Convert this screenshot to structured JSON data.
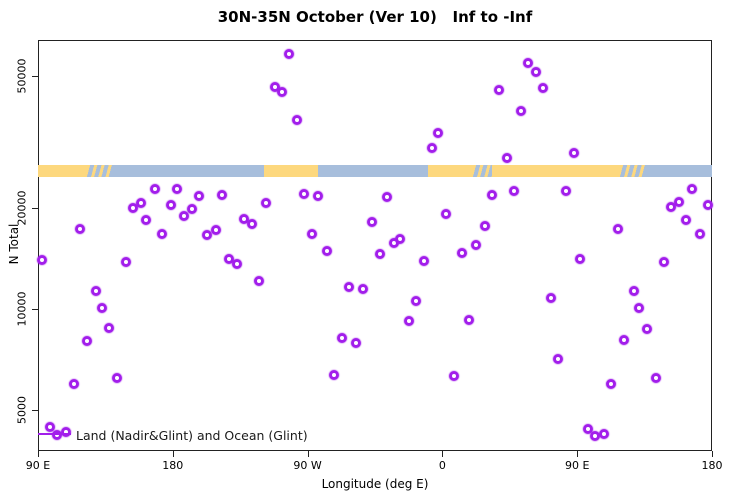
{
  "title": "30N-35N October (Ver 10)   Inf to -Inf",
  "legend": {
    "label": "Land (Nadir&Glint) and Ocean (Glint)"
  },
  "axes": {
    "x_label": "Longitude (deg E)",
    "y_label": "N Total"
  },
  "chart_data": {
    "type": "scatter",
    "title": "30N-35N October (Ver 10)   Inf to -Inf",
    "xlabel": "Longitude (deg E)",
    "ylabel": "N Total",
    "y_scale": "log",
    "x_range_display_deg": [
      90,
      540
    ],
    "y_range": [
      4000,
      62000
    ],
    "grid": false,
    "legend_position": "bottom-left-inside",
    "marker": "open-circle",
    "colors": {
      "point": "#A21EEB",
      "land": "#FDD87E",
      "ocean": "#A7BEDC",
      "axis": "#222222"
    },
    "x_ticks": [
      {
        "deg": 90,
        "label": "90 E"
      },
      {
        "deg": 180,
        "label": "180"
      },
      {
        "deg": 270,
        "label": "90 W"
      },
      {
        "deg": 360,
        "label": "0"
      },
      {
        "deg": 450,
        "label": "90 E"
      },
      {
        "deg": 540,
        "label": "180"
      }
    ],
    "y_ticks": [
      {
        "value": 5000,
        "label": "5000"
      },
      {
        "value": 10000,
        "label": "10000"
      },
      {
        "value": 20000,
        "label": "20000"
      },
      {
        "value": 50000,
        "label": "50000"
      }
    ],
    "surface_band": {
      "n_top": 27000,
      "n_bottom": 24800,
      "segments": [
        {
          "from_deg": 90.0,
          "to_deg": 122.8,
          "type": "land"
        },
        {
          "from_deg": 122.8,
          "to_deg": 139.5,
          "type": "mixed"
        },
        {
          "from_deg": 139.5,
          "to_deg": 241.1,
          "type": "ocean"
        },
        {
          "from_deg": 241.1,
          "to_deg": 277.2,
          "type": "land"
        },
        {
          "from_deg": 277.2,
          "to_deg": 350.1,
          "type": "ocean"
        },
        {
          "from_deg": 350.1,
          "to_deg": 380.2,
          "type": "land"
        },
        {
          "from_deg": 380.2,
          "to_deg": 392.9,
          "type": "mixed"
        },
        {
          "from_deg": 392.9,
          "to_deg": 478.5,
          "type": "land"
        },
        {
          "from_deg": 478.5,
          "to_deg": 495.2,
          "type": "mixed"
        },
        {
          "from_deg": 495.2,
          "to_deg": 540.0,
          "type": "ocean"
        }
      ]
    },
    "points": [
      [
        257.6,
        57870
      ],
      [
        248.0,
        46310
      ],
      [
        252.7,
        44640
      ],
      [
        262.7,
        36730
      ],
      [
        357.2,
        33640
      ],
      [
        353.0,
        30410
      ],
      [
        417.4,
        54620
      ],
      [
        422.3,
        51140
      ],
      [
        427.0,
        45890
      ],
      [
        397.6,
        45260
      ],
      [
        412.5,
        39070
      ],
      [
        447.7,
        29320
      ],
      [
        403.1,
        28380
      ],
      [
        167.8,
        22830
      ],
      [
        182.7,
        22830
      ],
      [
        197.6,
        21750
      ],
      [
        212.8,
        21900
      ],
      [
        158.9,
        20810
      ],
      [
        153.1,
        20110
      ],
      [
        178.9,
        20440
      ],
      [
        192.5,
        19970
      ],
      [
        187.6,
        19030
      ],
      [
        162.4,
        18470
      ],
      [
        227.7,
        18560
      ],
      [
        232.6,
        17970
      ],
      [
        118.1,
        17320
      ],
      [
        173.1,
        16730
      ],
      [
        208.6,
        17270
      ],
      [
        203.0,
        16620
      ],
      [
        92.5,
        14050
      ],
      [
        149.0,
        13800
      ],
      [
        217.7,
        14120
      ],
      [
        222.9,
        13660
      ],
      [
        237.4,
        12150
      ],
      [
        129.0,
        11320
      ],
      [
        132.8,
        10090
      ],
      [
        242.4,
        20770
      ],
      [
        267.6,
        22140
      ],
      [
        277.2,
        21840
      ],
      [
        322.9,
        21600
      ],
      [
        362.6,
        19250
      ],
      [
        312.7,
        18180
      ],
      [
        388.2,
        17780
      ],
      [
        272.7,
        16730
      ],
      [
        327.4,
        15800
      ],
      [
        331.9,
        16170
      ],
      [
        282.8,
        14920
      ],
      [
        318.2,
        14610
      ],
      [
        372.8,
        14740
      ],
      [
        382.6,
        15510
      ],
      [
        347.4,
        13890
      ],
      [
        297.7,
        11640
      ],
      [
        307.3,
        11480
      ],
      [
        342.7,
        10570
      ],
      [
        337.4,
        9210
      ],
      [
        377.5,
        9300
      ],
      [
        393.1,
        21990
      ],
      [
        407.6,
        22560
      ],
      [
        442.6,
        22560
      ],
      [
        526.4,
        22920
      ],
      [
        517.9,
        20910
      ],
      [
        512.4,
        20200
      ],
      [
        537.5,
        20440
      ],
      [
        522.4,
        18510
      ],
      [
        532.0,
        16730
      ],
      [
        477.2,
        17320
      ],
      [
        452.2,
        14090
      ],
      [
        507.7,
        13800
      ],
      [
        487.6,
        11340
      ],
      [
        491.4,
        10070
      ],
      [
        432.3,
        10760
      ],
      [
        137.5,
        8750
      ],
      [
        123.0,
        8040
      ],
      [
        113.9,
        5950
      ],
      [
        143.0,
        6210
      ],
      [
        97.7,
        4420
      ],
      [
        102.7,
        4200
      ],
      [
        108.4,
        4270
      ],
      [
        292.8,
        8170
      ],
      [
        302.4,
        7890
      ],
      [
        287.5,
        6330
      ],
      [
        367.9,
        6310
      ],
      [
        496.7,
        8730
      ],
      [
        481.3,
        8060
      ],
      [
        437.5,
        7070
      ],
      [
        472.9,
        5950
      ],
      [
        502.3,
        6210
      ],
      [
        457.0,
        4370
      ],
      [
        462.2,
        4160
      ],
      [
        467.7,
        4230
      ]
    ]
  }
}
